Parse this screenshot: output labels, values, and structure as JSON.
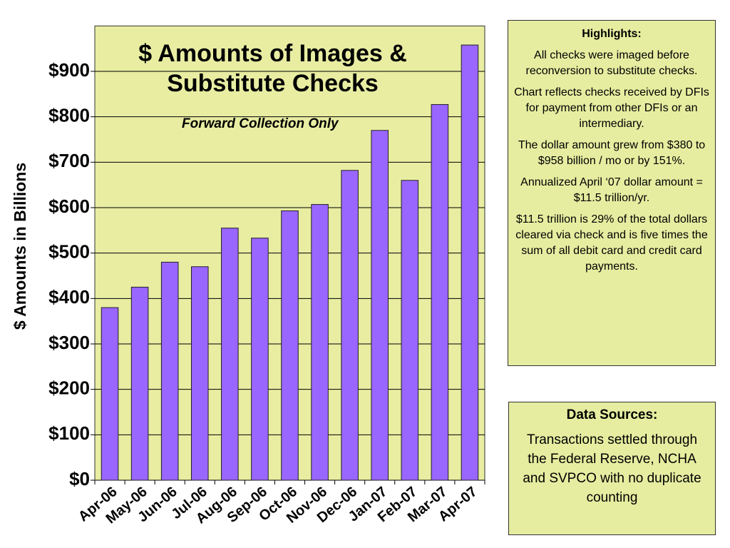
{
  "chart_data": {
    "type": "bar",
    "title": "$ Amounts of Images & Substitute Checks",
    "subtitle": "Forward Collection Only",
    "y_axis_label": "$ Amounts in Billions",
    "categories": [
      "Apr-06",
      "May-06",
      "Jun-06",
      "Jul-06",
      "Aug-06",
      "Sep-06",
      "Oct-06",
      "Nov-06",
      "Dec-06",
      "Jan-07",
      "Feb-07",
      "Mar-07",
      "Apr-07"
    ],
    "values": [
      380,
      425,
      480,
      470,
      555,
      533,
      593,
      607,
      682,
      770,
      660,
      827,
      958
    ],
    "color": "#9966ff",
    "ylim": [
      0,
      1000
    ],
    "yticks": [
      {
        "value": 0,
        "label": "$0"
      },
      {
        "value": 100,
        "label": "$100"
      },
      {
        "value": 200,
        "label": "$200"
      },
      {
        "value": 300,
        "label": "$300"
      },
      {
        "value": 400,
        "label": "$400"
      },
      {
        "value": 500,
        "label": "$500"
      },
      {
        "value": 600,
        "label": "$600"
      },
      {
        "value": 700,
        "label": "$700"
      },
      {
        "value": 800,
        "label": "$800"
      },
      {
        "value": 900,
        "label": "$900"
      }
    ],
    "grid": true
  },
  "highlights": {
    "heading": "Highlights:",
    "paragraphs": [
      "All checks were imaged before reconversion to substitute checks.",
      "Chart reflects checks received by DFIs for payment from other DFIs or an intermediary.",
      "The dollar amount grew from $380 to $958 billion / mo or by 151%.",
      "Annualized April ‘07 dollar amount  = $11.5 trillion/yr.",
      "$11.5 trillion is 29% of the total dollars cleared via check and is five times the sum of all debit card and credit card payments."
    ]
  },
  "sources": {
    "heading": "Data Sources:",
    "text": "Transactions settled through the Federal Reserve, NCHA and SVPCO with no duplicate counting"
  }
}
